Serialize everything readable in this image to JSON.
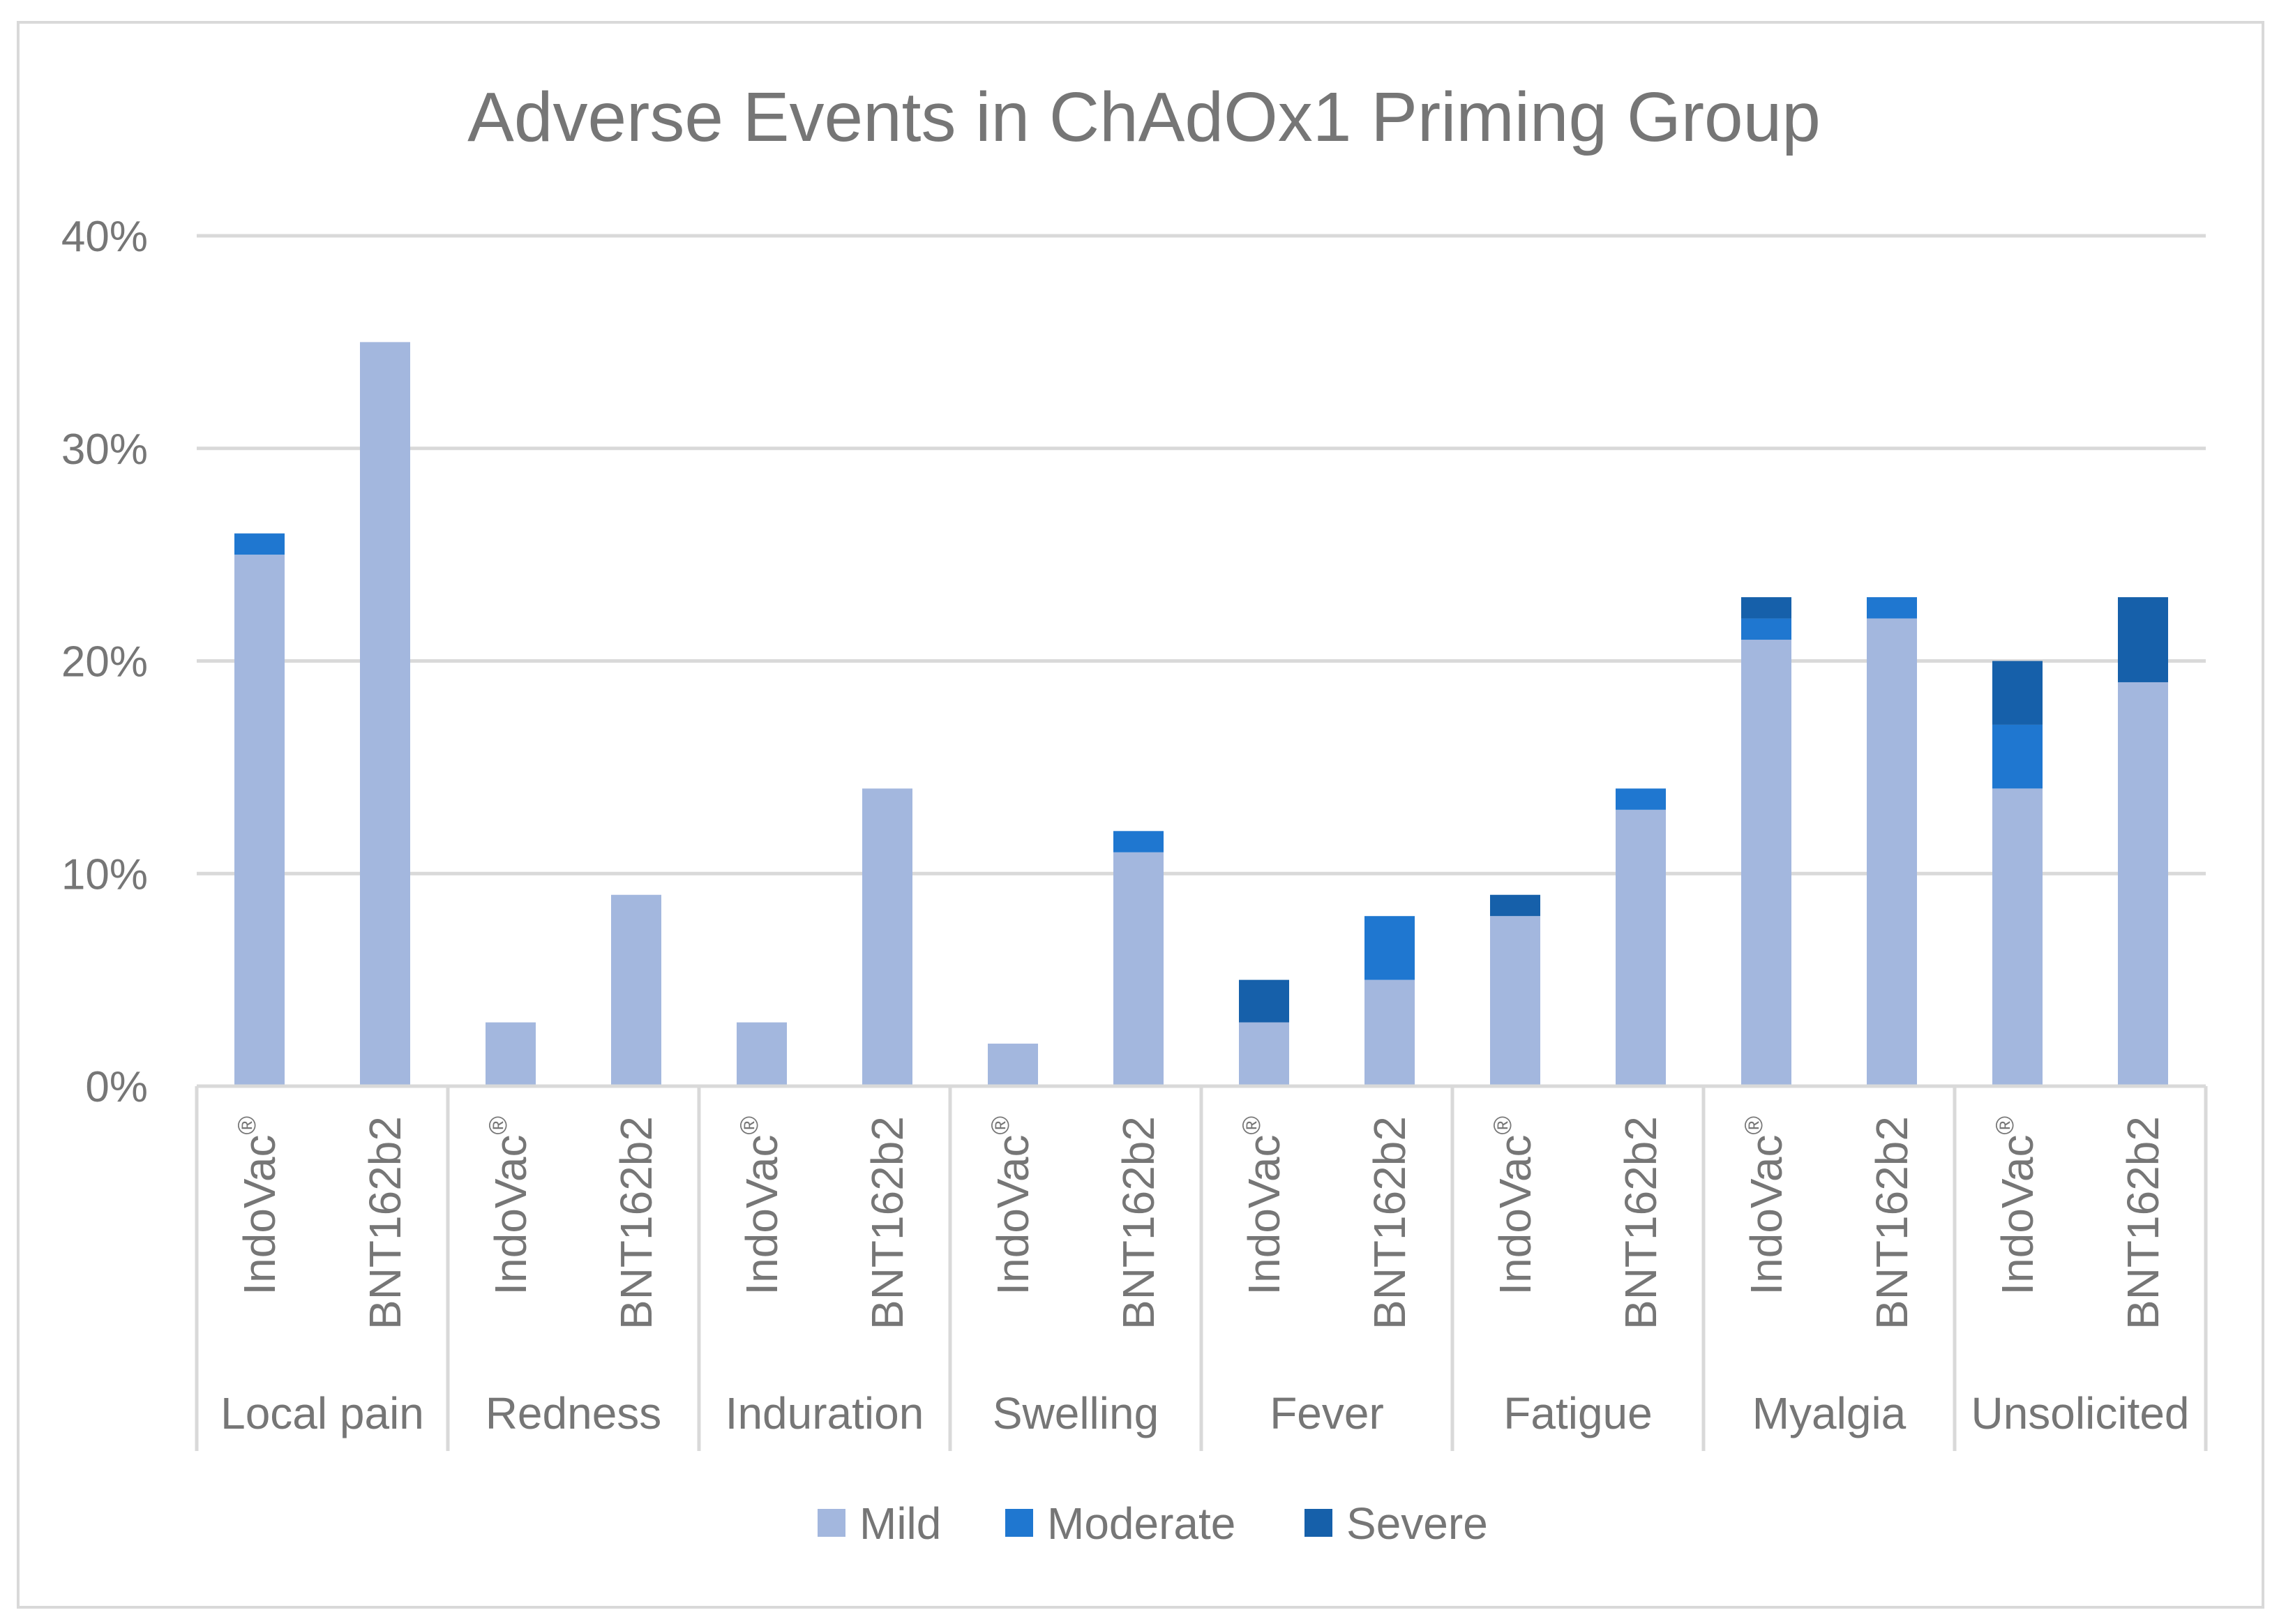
{
  "chart_data": {
    "type": "bar",
    "stacked": true,
    "title": "Adverse Events in ChAdOx1  Priming Group",
    "xlabel": "",
    "ylabel": "",
    "ylim": [
      0,
      40
    ],
    "yticks": [
      "0%",
      "10%",
      "20%",
      "30%",
      "40%"
    ],
    "ytick_values": [
      0,
      10,
      20,
      30,
      40
    ],
    "grid": true,
    "legend_position": "bottom",
    "groups": [
      "Local pain",
      "Redness",
      "Induration",
      "Swelling",
      "Fever",
      "Fatigue",
      "Myalgia",
      "Unsolicited"
    ],
    "vaccine_prefix": "IndoVac",
    "vaccine_mark": "®",
    "vaccines": [
      "IndoVac®",
      "BNT162b2"
    ],
    "categories": [
      "Local pain - IndoVac®",
      "Local pain - BNT162b2",
      "Redness - IndoVac®",
      "Redness - BNT162b2",
      "Induration - IndoVac®",
      "Induration - BNT162b2",
      "Swelling - IndoVac®",
      "Swelling - BNT162b2",
      "Fever - IndoVac®",
      "Fever - BNT162b2",
      "Fatigue - IndoVac®",
      "Fatigue - BNT162b2",
      "Myalgia - IndoVac®",
      "Myalgia - BNT162b2",
      "Unsolicited - IndoVac®",
      "Unsolicited - BNT162b2"
    ],
    "series": [
      {
        "name": "Mild",
        "color": "#a3b7de",
        "values": [
          25,
          35,
          3,
          9,
          3,
          14,
          2,
          11,
          3,
          5,
          8,
          13,
          21,
          22,
          14,
          19
        ]
      },
      {
        "name": "Moderate",
        "color": "#1f77d0",
        "values": [
          1,
          0,
          0,
          0,
          0,
          0,
          0,
          1,
          0,
          3,
          0,
          1,
          1,
          1,
          3,
          0
        ]
      },
      {
        "name": "Severe",
        "color": "#1660aa",
        "values": [
          0,
          0,
          0,
          0,
          0,
          0,
          0,
          0,
          2,
          0,
          1,
          0,
          1,
          0,
          3,
          4
        ]
      }
    ]
  }
}
